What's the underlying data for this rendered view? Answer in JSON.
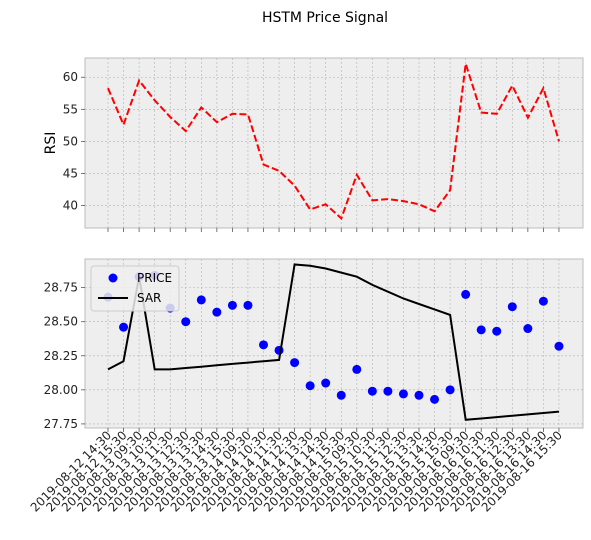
{
  "chart_data": {
    "title": "HSTM Price Signal",
    "categories": [
      "2019-08-12 14:30",
      "2019-08-12 15:30",
      "2019-08-13 09:30",
      "2019-08-13 10:30",
      "2019-08-13 11:30",
      "2019-08-13 12:30",
      "2019-08-13 13:30",
      "2019-08-13 14:30",
      "2019-08-13 15:30",
      "2019-08-14 09:30",
      "2019-08-14 10:30",
      "2019-08-14 11:30",
      "2019-08-14 12:30",
      "2019-08-14 13:30",
      "2019-08-14 14:30",
      "2019-08-14 15:30",
      "2019-08-15 09:30",
      "2019-08-15 10:30",
      "2019-08-15 11:30",
      "2019-08-15 12:30",
      "2019-08-15 13:30",
      "2019-08-15 14:30",
      "2019-08-15 15:30",
      "2019-08-16 09:30",
      "2019-08-16 10:30",
      "2019-08-16 11:30",
      "2019-08-16 12:30",
      "2019-08-16 13:30",
      "2019-08-16 14:30",
      "2019-08-16 15:30"
    ],
    "panels": [
      {
        "type": "line",
        "ylabel": "RSI",
        "ylim": [
          36.5,
          63
        ],
        "yticks": [
          40,
          45,
          50,
          55,
          60
        ],
        "series": [
          {
            "values": [
              58.3,
              52.6,
              59.5,
              56.4,
              53.8,
              51.6,
              55.3,
              53.0,
              54.3,
              54.2,
              46.4,
              45.4,
              43.1,
              39.4,
              40.2,
              38.0,
              44.8,
              40.8,
              41.0,
              40.7,
              40.2,
              39.1,
              42.4,
              62.1,
              54.5,
              54.3,
              58.7,
              53.7,
              58.3,
              50.0
            ],
            "color": "#ff0000",
            "style": "dashed"
          }
        ],
        "grid": true
      },
      {
        "type": "scatter+line",
        "ylim": [
          27.72,
          28.96
        ],
        "yticks": [
          27.75,
          28.0,
          28.25,
          28.5,
          28.75
        ],
        "ytick_labels": [
          "27.75",
          "28.00",
          "28.25",
          "28.50",
          "28.75"
        ],
        "series": [
          {
            "name": "PRICE",
            "type": "scatter",
            "color": "#0000ff",
            "values": [
              28.68,
              28.46,
              28.83,
              28.84,
              28.6,
              28.5,
              28.66,
              28.57,
              28.62,
              28.62,
              28.33,
              28.29,
              28.2,
              28.03,
              28.05,
              27.96,
              28.15,
              27.99,
              27.99,
              27.97,
              27.96,
              27.93,
              28.0,
              28.7,
              28.44,
              28.43,
              28.61,
              28.45,
              28.65,
              28.32
            ]
          },
          {
            "name": "SAR",
            "type": "line",
            "color": "#000000",
            "values": [
              28.15,
              28.21,
              28.83,
              28.15,
              28.15,
              28.16,
              28.17,
              28.18,
              28.19,
              28.2,
              28.21,
              28.22,
              28.92,
              28.91,
              28.89,
              28.86,
              28.83,
              28.77,
              28.72,
              28.67,
              28.63,
              28.59,
              28.55,
              27.78,
              27.79,
              27.8,
              27.81,
              27.82,
              27.83,
              27.84
            ]
          }
        ],
        "legend": "upper left",
        "grid": true
      }
    ]
  }
}
